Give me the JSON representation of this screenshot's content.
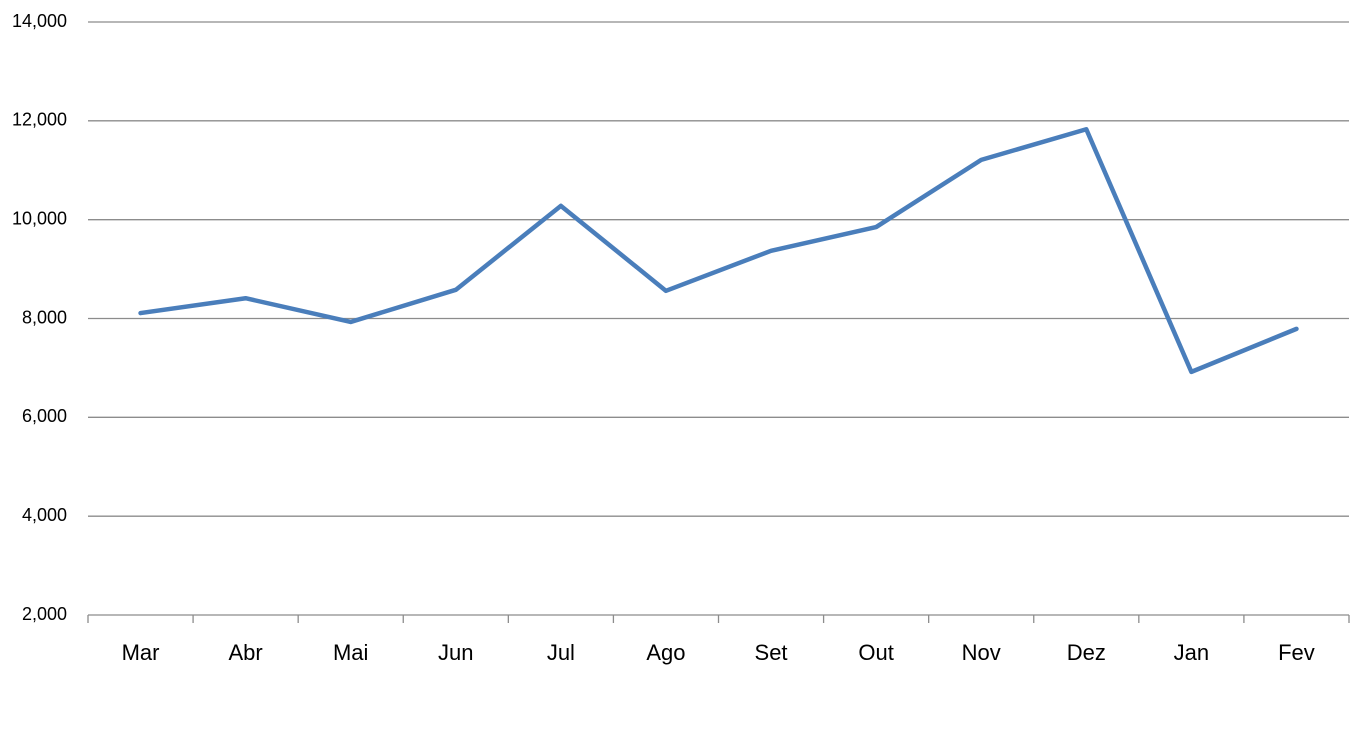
{
  "chart_data": {
    "type": "line",
    "categories": [
      "Mar",
      "Abr",
      "Mai",
      "Jun",
      "Jul",
      "Ago",
      "Set",
      "Out",
      "Nov",
      "Dez",
      "Jan",
      "Fev"
    ],
    "series": [
      {
        "color": "#4a7ebb",
        "values": [
          8110,
          8410,
          7930,
          8580,
          10280,
          8560,
          9370,
          9850,
          11210,
          11830,
          6920,
          7790
        ]
      }
    ],
    "ylim": [
      2000,
      14000
    ],
    "yticks": [
      {
        "value": 2000,
        "label": "2,000"
      },
      {
        "value": 4000,
        "label": "4,000"
      },
      {
        "value": 6000,
        "label": "6,000"
      },
      {
        "value": 8000,
        "label": "8,000"
      },
      {
        "value": 10000,
        "label": "10,000"
      },
      {
        "value": 12000,
        "label": "12,000"
      },
      {
        "value": 14000,
        "label": "14,000"
      }
    ],
    "grid": true
  }
}
